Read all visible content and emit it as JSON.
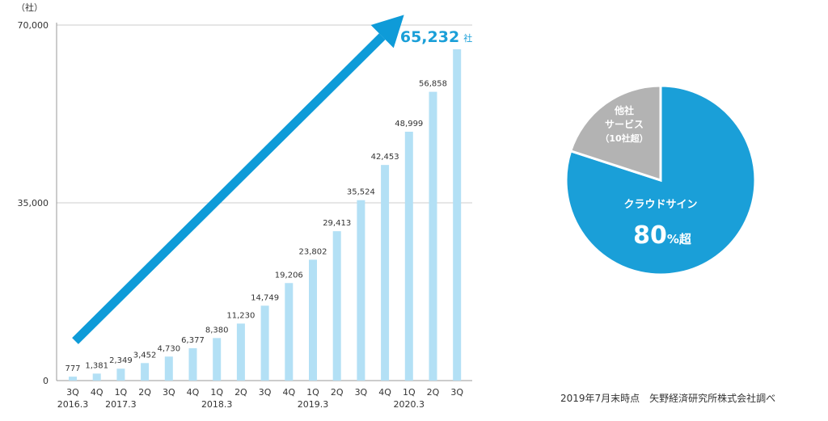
{
  "chart_data": [
    {
      "type": "bar",
      "y_unit": "（社）",
      "y_ticks": [
        0,
        35000,
        70000
      ],
      "y_tick_labels": [
        "0",
        "35,000",
        "70,000"
      ],
      "ylim": [
        0,
        70000
      ],
      "categories": [
        "3Q",
        "4Q",
        "1Q",
        "2Q",
        "3Q",
        "4Q",
        "1Q",
        "2Q",
        "3Q",
        "4Q",
        "1Q",
        "2Q",
        "3Q",
        "4Q",
        "1Q",
        "2Q",
        "3Q"
      ],
      "year_labels": [
        {
          "index": 0,
          "label": "2016.3"
        },
        {
          "index": 2,
          "label": "2017.3"
        },
        {
          "index": 6,
          "label": "2018.3"
        },
        {
          "index": 10,
          "label": "2019.3"
        },
        {
          "index": 14,
          "label": "2020.3"
        }
      ],
      "values": [
        777,
        1381,
        2349,
        3452,
        4730,
        6377,
        8380,
        11230,
        14749,
        19206,
        23802,
        29413,
        35524,
        42453,
        48999,
        56858,
        65232
      ],
      "value_labels": [
        "777",
        "1,381",
        "2,349",
        "3,452",
        "4,730",
        "6,377",
        "8,380",
        "11,230",
        "14,749",
        "19,206",
        "23,802",
        "29,413",
        "35,524",
        "42,453",
        "48,999",
        "56,858",
        "65,232"
      ],
      "highlight_label": "65,232",
      "highlight_unit": "社",
      "grid": "horizontal",
      "colors": {
        "bar": "#b3e0f5",
        "arrow": "#0e9bd8",
        "highlight": "#1a9fd8",
        "axis": "#999999"
      }
    },
    {
      "type": "pie",
      "slices": [
        {
          "name": "クラウドサイン",
          "value": 80,
          "label": "クラウドサイン",
          "percent_number": "80",
          "percent_suffix": "%超",
          "color": "#1a9fd8"
        },
        {
          "name": "他社サービス",
          "value": 20,
          "label_lines": [
            "他社",
            "サービス",
            "（10社超）"
          ],
          "color": "#b3b3b3"
        }
      ]
    }
  ],
  "footnote": "2019年7月末時点　矢野経済研究所株式会社調べ"
}
